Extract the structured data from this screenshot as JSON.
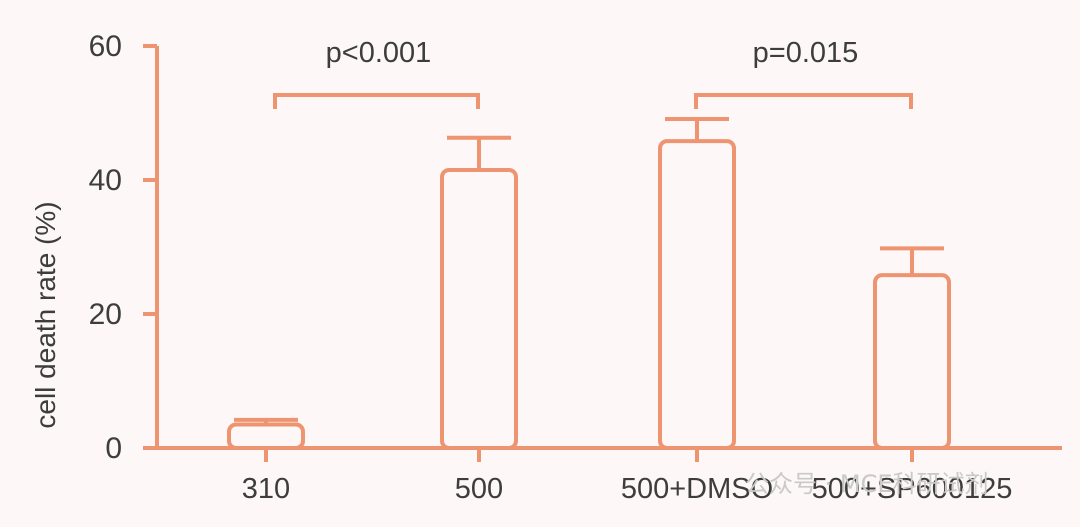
{
  "colors": {
    "accent": "#ef9470",
    "text": "#3d3d3d",
    "background": "#fdf7f7"
  },
  "chart_data": {
    "type": "bar",
    "title": "",
    "xlabel": "",
    "ylabel": "cell death rate (%)",
    "ylim": [
      0,
      60
    ],
    "yticks": [
      "0",
      "20",
      "40",
      "60"
    ],
    "grid": false,
    "legend": "none",
    "categories": [
      "310",
      "500",
      "500+DMSO",
      "500+SP600125"
    ],
    "series": [
      {
        "values": [
          3.5,
          41.5,
          45.8,
          25.8
        ],
        "error": [
          0.7,
          4.8,
          3.3,
          4.0
        ]
      }
    ],
    "annotations": [
      {
        "label": "p<0.001",
        "from": 0,
        "to": 1
      },
      {
        "label": "p=0.015",
        "from": 2,
        "to": 3
      }
    ]
  },
  "watermark": "公众号 · MCE科研试剂"
}
